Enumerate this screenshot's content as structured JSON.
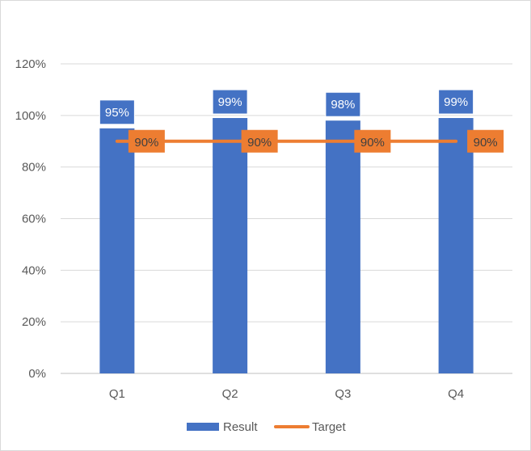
{
  "chart_data": {
    "type": "bar",
    "categories": [
      "Q1",
      "Q2",
      "Q3",
      "Q4"
    ],
    "series": [
      {
        "name": "Result",
        "type": "bar",
        "values": [
          95,
          99,
          98,
          99
        ],
        "labels": [
          "95%",
          "99%",
          "98%",
          "99%"
        ],
        "color": "#4472C4"
      },
      {
        "name": "Target",
        "type": "line",
        "values": [
          90,
          90,
          90,
          90
        ],
        "labels": [
          "90%",
          "90%",
          "90%",
          "90%"
        ],
        "color": "#ED7D31"
      }
    ],
    "y_ticks": [
      "0%",
      "20%",
      "40%",
      "60%",
      "80%",
      "100%",
      "120%"
    ],
    "ylim": [
      0,
      120
    ],
    "grid": true,
    "legend": "bottom",
    "title": "",
    "xlabel": "",
    "ylabel": ""
  }
}
